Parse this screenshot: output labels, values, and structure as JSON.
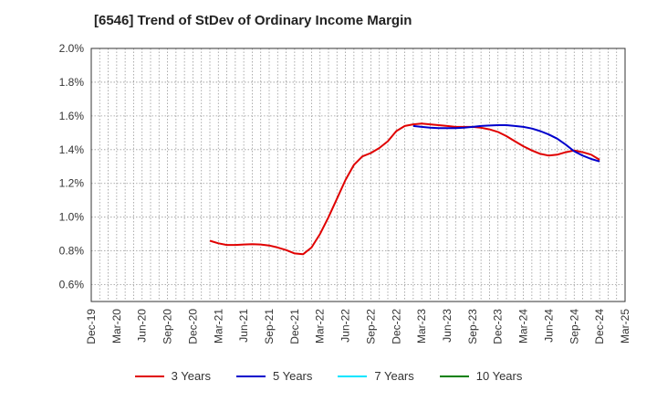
{
  "chart_data": {
    "type": "line",
    "title": "[6546]  Trend of StDev of Ordinary Income Margin",
    "xlabel": "",
    "ylabel": "",
    "x_ticks": [
      "Dec-19",
      "Mar-20",
      "Jun-20",
      "Sep-20",
      "Dec-20",
      "Mar-21",
      "Jun-21",
      "Sep-21",
      "Dec-21",
      "Mar-22",
      "Jun-22",
      "Sep-22",
      "Dec-22",
      "Mar-23",
      "Jun-23",
      "Sep-23",
      "Dec-23",
      "Mar-24",
      "Jun-24",
      "Sep-24",
      "Dec-24",
      "Mar-25"
    ],
    "y_ticks": [
      "0.6%",
      "0.8%",
      "1.0%",
      "1.2%",
      "1.4%",
      "1.6%",
      "1.8%",
      "2.0%"
    ],
    "ylim": [
      0.5,
      2.0
    ],
    "grid": true,
    "legend_position": "bottom",
    "series": [
      {
        "name": "3 Years",
        "color": "#e00000",
        "points": [
          [
            "Feb-21",
            0.86
          ],
          [
            "Mar-21",
            0.845
          ],
          [
            "Apr-21",
            0.835
          ],
          [
            "May-21",
            0.835
          ],
          [
            "Jun-21",
            0.838
          ],
          [
            "Jul-21",
            0.84
          ],
          [
            "Aug-21",
            0.838
          ],
          [
            "Sep-21",
            0.832
          ],
          [
            "Oct-21",
            0.82
          ],
          [
            "Nov-21",
            0.805
          ],
          [
            "Dec-21",
            0.785
          ],
          [
            "Jan-22",
            0.78
          ],
          [
            "Feb-22",
            0.82
          ],
          [
            "Mar-22",
            0.9
          ],
          [
            "Apr-22",
            1.0
          ],
          [
            "May-22",
            1.11
          ],
          [
            "Jun-22",
            1.22
          ],
          [
            "Jul-22",
            1.31
          ],
          [
            "Aug-22",
            1.36
          ],
          [
            "Sep-22",
            1.38
          ],
          [
            "Oct-22",
            1.41
          ],
          [
            "Nov-22",
            1.45
          ],
          [
            "Dec-22",
            1.51
          ],
          [
            "Jan-23",
            1.54
          ],
          [
            "Feb-23",
            1.55
          ],
          [
            "Mar-23",
            1.555
          ],
          [
            "Apr-23",
            1.55
          ],
          [
            "May-23",
            1.545
          ],
          [
            "Jun-23",
            1.54
          ],
          [
            "Jul-23",
            1.535
          ],
          [
            "Aug-23",
            1.535
          ],
          [
            "Sep-23",
            1.535
          ],
          [
            "Oct-23",
            1.53
          ],
          [
            "Nov-23",
            1.52
          ],
          [
            "Dec-23",
            1.505
          ],
          [
            "Jan-24",
            1.48
          ],
          [
            "Feb-24",
            1.45
          ],
          [
            "Mar-24",
            1.42
          ],
          [
            "Apr-24",
            1.395
          ],
          [
            "May-24",
            1.375
          ],
          [
            "Jun-24",
            1.365
          ],
          [
            "Jul-24",
            1.37
          ],
          [
            "Aug-24",
            1.385
          ],
          [
            "Sep-24",
            1.395
          ],
          [
            "Oct-24",
            1.385
          ],
          [
            "Nov-24",
            1.37
          ],
          [
            "Dec-24",
            1.34
          ]
        ]
      },
      {
        "name": "5 Years",
        "color": "#0000cc",
        "points": [
          [
            "Feb-23",
            1.54
          ],
          [
            "Mar-23",
            1.535
          ],
          [
            "Apr-23",
            1.53
          ],
          [
            "May-23",
            1.528
          ],
          [
            "Jun-23",
            1.527
          ],
          [
            "Jul-23",
            1.528
          ],
          [
            "Aug-23",
            1.53
          ],
          [
            "Sep-23",
            1.535
          ],
          [
            "Oct-23",
            1.54
          ],
          [
            "Nov-23",
            1.543
          ],
          [
            "Dec-23",
            1.545
          ],
          [
            "Jan-24",
            1.545
          ],
          [
            "Feb-24",
            1.54
          ],
          [
            "Mar-24",
            1.535
          ],
          [
            "Apr-24",
            1.525
          ],
          [
            "May-24",
            1.51
          ],
          [
            "Jun-24",
            1.49
          ],
          [
            "Jul-24",
            1.465
          ],
          [
            "Aug-24",
            1.43
          ],
          [
            "Sep-24",
            1.39
          ],
          [
            "Oct-24",
            1.365
          ],
          [
            "Nov-24",
            1.345
          ],
          [
            "Dec-24",
            1.33
          ]
        ]
      },
      {
        "name": "7 Years",
        "color": "#00e5ff",
        "points": []
      },
      {
        "name": "10 Years",
        "color": "#008000",
        "points": []
      }
    ]
  }
}
